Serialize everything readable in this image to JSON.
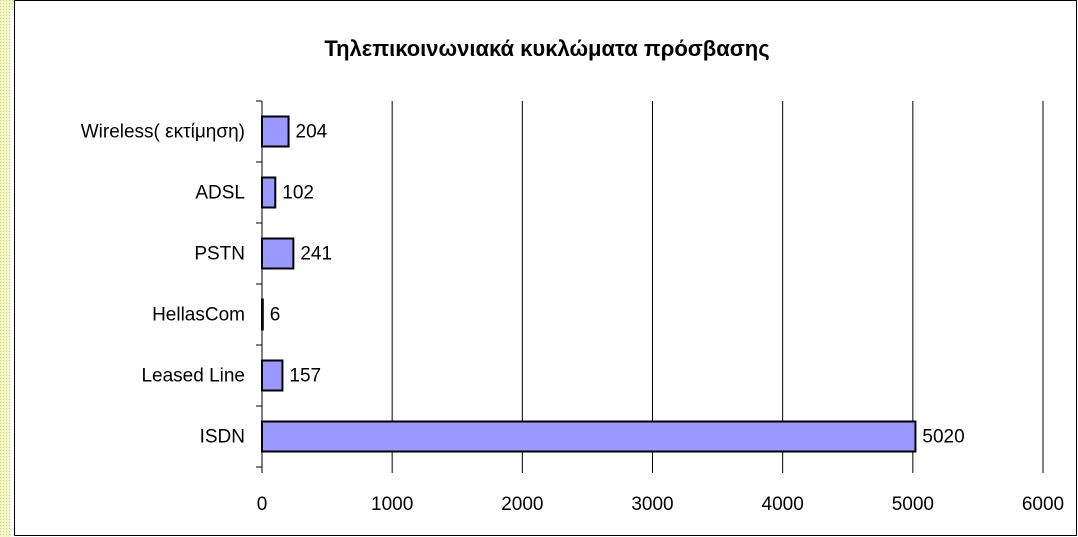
{
  "chart_data": {
    "type": "hbar",
    "title": "Τηλεπικοινωνιακά κυκλώματα πρόσβασης",
    "categories": [
      "Wireless( εκτίμηση)",
      "ADSL",
      "PSTN",
      "HellasCom",
      "Leased Line",
      "ISDN"
    ],
    "values": [
      204,
      102,
      241,
      6,
      157,
      5020
    ],
    "color": "#9999ff",
    "xlim": [
      0,
      6000
    ],
    "xticks": [
      0,
      1000,
      2000,
      3000,
      4000,
      5000,
      6000
    ],
    "grid": true
  }
}
